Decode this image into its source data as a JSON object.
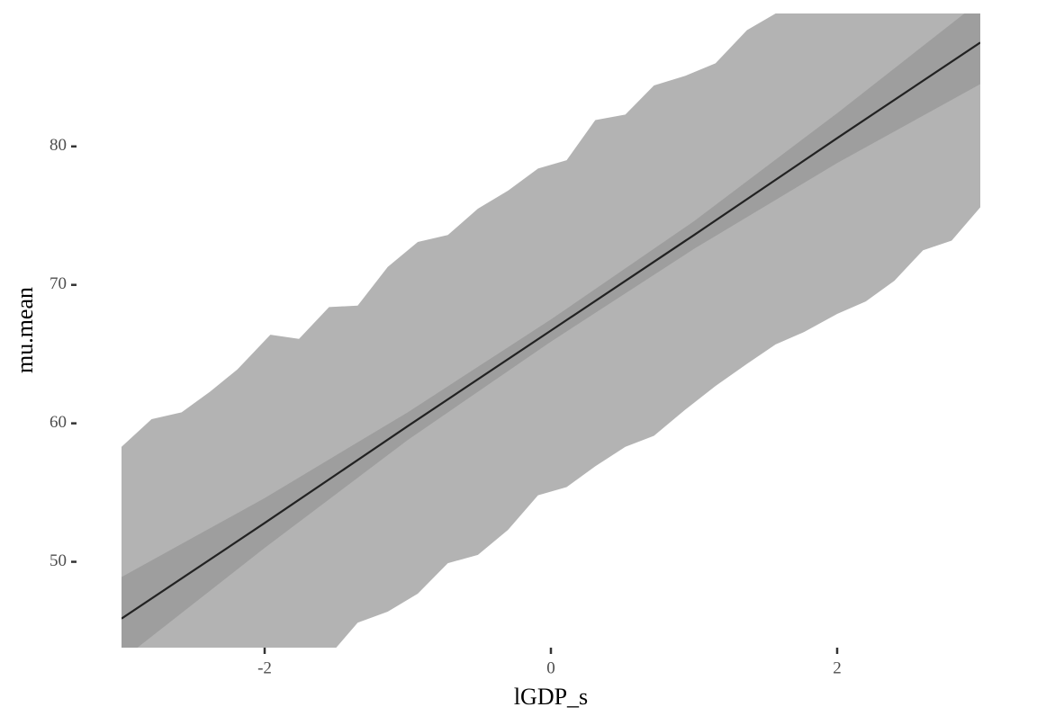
{
  "chart_data": {
    "type": "line",
    "xlabel": "lGDP_s",
    "ylabel": "mu.mean",
    "xlim": [
      -3,
      3
    ],
    "ylim": [
      43.8,
      89.6
    ],
    "xticks": [
      -2,
      0,
      2
    ],
    "yticks": [
      50,
      60,
      70,
      80
    ],
    "x": [
      -3,
      -2,
      -1,
      0,
      1,
      2,
      3
    ],
    "values": [
      45.9,
      52.8,
      59.8,
      66.7,
      73.6,
      80.6,
      87.5
    ],
    "color": "#222222",
    "bands": [
      {
        "color": "#b3b3b3",
        "x": [
          -3.0,
          -2.79,
          -2.58,
          -2.38,
          -2.19,
          -1.96,
          -1.76,
          -1.55,
          -1.35,
          -1.14,
          -0.93,
          -0.72,
          -0.51,
          -0.3,
          -0.09,
          0.11,
          0.31,
          0.52,
          0.72,
          0.94,
          1.15,
          1.37,
          1.57,
          1.77,
          2.0,
          2.2,
          2.4,
          2.6,
          2.8,
          3.0
        ],
        "high": [
          58.3,
          60.3,
          60.8,
          62.3,
          63.9,
          66.4,
          66.1,
          68.4,
          68.5,
          71.3,
          73.1,
          73.6,
          75.5,
          76.8,
          78.4,
          79.0,
          81.9,
          82.3,
          84.4,
          85.1,
          86.0,
          88.4,
          89.6,
          90.5,
          91.5,
          92.3,
          93.3,
          94.2,
          95.1,
          96.0
        ],
        "low": [
          36.5,
          37.3,
          38.0,
          38.8,
          39.6,
          40.4,
          41.2,
          43.2,
          45.6,
          46.4,
          47.7,
          49.9,
          50.5,
          52.3,
          54.8,
          55.4,
          56.9,
          58.3,
          59.1,
          61.0,
          62.7,
          64.3,
          65.7,
          66.6,
          67.9,
          68.8,
          70.3,
          72.5,
          73.2,
          75.6
        ]
      },
      {
        "color": "#9e9e9e",
        "x": [
          -3,
          -2,
          -1,
          0,
          1,
          2,
          3
        ],
        "high": [
          48.9,
          54.6,
          60.8,
          67.5,
          74.6,
          82.4,
          90.5
        ],
        "low": [
          42.9,
          51.0,
          58.8,
          65.9,
          72.6,
          78.8,
          84.5
        ]
      }
    ]
  }
}
